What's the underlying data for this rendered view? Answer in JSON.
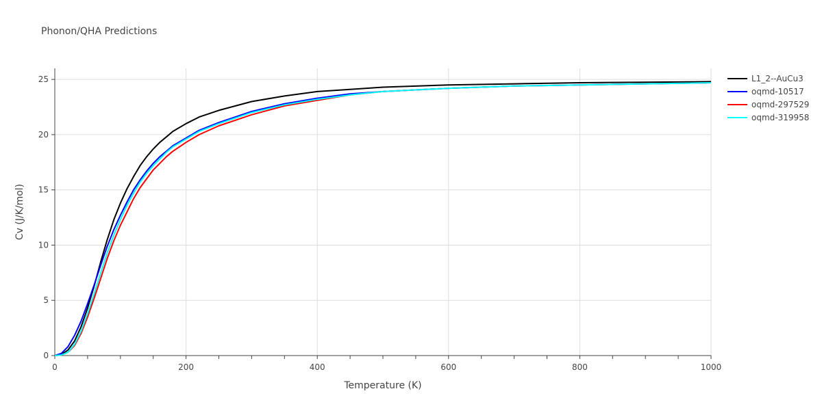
{
  "chart_data": {
    "type": "line",
    "title": "Phonon/QHA Predictions",
    "xlabel": "Temperature (K)",
    "ylabel": "Cv (J/K/mol)",
    "xlim": [
      0,
      1000
    ],
    "ylim": [
      0,
      26
    ],
    "x_ticks": [
      0,
      200,
      400,
      600,
      800,
      1000
    ],
    "y_ticks": [
      0,
      5,
      10,
      15,
      20,
      25
    ],
    "grid": true,
    "legend_position": "right",
    "series": [
      {
        "name": "L1_2--AuCu3",
        "color": "#000000",
        "points": [
          [
            0,
            0
          ],
          [
            10,
            0.1
          ],
          [
            20,
            0.5
          ],
          [
            30,
            1.3
          ],
          [
            40,
            2.6
          ],
          [
            50,
            4.3
          ],
          [
            60,
            6.3
          ],
          [
            70,
            8.5
          ],
          [
            80,
            10.5
          ],
          [
            90,
            12.3
          ],
          [
            100,
            13.8
          ],
          [
            110,
            15.1
          ],
          [
            120,
            16.2
          ],
          [
            130,
            17.2
          ],
          [
            140,
            18.0
          ],
          [
            150,
            18.7
          ],
          [
            160,
            19.3
          ],
          [
            170,
            19.8
          ],
          [
            180,
            20.3
          ],
          [
            200,
            21.0
          ],
          [
            220,
            21.6
          ],
          [
            250,
            22.2
          ],
          [
            300,
            23.0
          ],
          [
            350,
            23.5
          ],
          [
            400,
            23.9
          ],
          [
            450,
            24.1
          ],
          [
            500,
            24.3
          ],
          [
            600,
            24.5
          ],
          [
            700,
            24.6
          ],
          [
            800,
            24.7
          ],
          [
            900,
            24.75
          ],
          [
            1000,
            24.8
          ]
        ]
      },
      {
        "name": "oqmd-10517",
        "color": "#0000ff",
        "points": [
          [
            0,
            0
          ],
          [
            10,
            0.2
          ],
          [
            20,
            0.8
          ],
          [
            30,
            1.8
          ],
          [
            40,
            3.1
          ],
          [
            50,
            4.7
          ],
          [
            60,
            6.4
          ],
          [
            70,
            8.2
          ],
          [
            80,
            9.9
          ],
          [
            90,
            11.4
          ],
          [
            100,
            12.7
          ],
          [
            110,
            13.9
          ],
          [
            120,
            15.0
          ],
          [
            130,
            15.9
          ],
          [
            140,
            16.7
          ],
          [
            150,
            17.4
          ],
          [
            160,
            18.0
          ],
          [
            170,
            18.5
          ],
          [
            180,
            19.0
          ],
          [
            200,
            19.7
          ],
          [
            220,
            20.4
          ],
          [
            250,
            21.1
          ],
          [
            300,
            22.1
          ],
          [
            350,
            22.8
          ],
          [
            400,
            23.3
          ],
          [
            450,
            23.7
          ],
          [
            500,
            23.9
          ],
          [
            600,
            24.2
          ],
          [
            700,
            24.4
          ],
          [
            800,
            24.5
          ],
          [
            900,
            24.6
          ],
          [
            1000,
            24.7
          ]
        ]
      },
      {
        "name": "oqmd-297529",
        "color": "#ff0000",
        "points": [
          [
            0,
            0
          ],
          [
            10,
            0.05
          ],
          [
            20,
            0.3
          ],
          [
            30,
            0.9
          ],
          [
            40,
            2.0
          ],
          [
            50,
            3.5
          ],
          [
            60,
            5.2
          ],
          [
            70,
            7.0
          ],
          [
            80,
            8.8
          ],
          [
            90,
            10.4
          ],
          [
            100,
            11.8
          ],
          [
            110,
            13.0
          ],
          [
            120,
            14.2
          ],
          [
            130,
            15.2
          ],
          [
            140,
            16.0
          ],
          [
            150,
            16.8
          ],
          [
            160,
            17.4
          ],
          [
            170,
            18.0
          ],
          [
            180,
            18.5
          ],
          [
            200,
            19.3
          ],
          [
            220,
            20.0
          ],
          [
            250,
            20.8
          ],
          [
            300,
            21.8
          ],
          [
            350,
            22.6
          ],
          [
            400,
            23.1
          ],
          [
            450,
            23.6
          ],
          [
            500,
            23.9
          ],
          [
            600,
            24.2
          ],
          [
            700,
            24.4
          ],
          [
            800,
            24.5
          ],
          [
            900,
            24.6
          ],
          [
            1000,
            24.7
          ]
        ]
      },
      {
        "name": "oqmd-319958",
        "color": "#00ffff",
        "points": [
          [
            0,
            0
          ],
          [
            10,
            0.05
          ],
          [
            20,
            0.3
          ],
          [
            30,
            1.0
          ],
          [
            40,
            2.2
          ],
          [
            50,
            3.8
          ],
          [
            60,
            5.6
          ],
          [
            70,
            7.5
          ],
          [
            80,
            9.3
          ],
          [
            90,
            10.9
          ],
          [
            100,
            12.3
          ],
          [
            110,
            13.6
          ],
          [
            120,
            14.7
          ],
          [
            130,
            15.7
          ],
          [
            140,
            16.5
          ],
          [
            150,
            17.2
          ],
          [
            160,
            17.8
          ],
          [
            170,
            18.4
          ],
          [
            180,
            18.9
          ],
          [
            200,
            19.6
          ],
          [
            220,
            20.3
          ],
          [
            250,
            21.0
          ],
          [
            300,
            22.0
          ],
          [
            350,
            22.7
          ],
          [
            400,
            23.2
          ],
          [
            450,
            23.6
          ],
          [
            500,
            23.9
          ],
          [
            600,
            24.2
          ],
          [
            700,
            24.4
          ],
          [
            800,
            24.5
          ],
          [
            900,
            24.6
          ],
          [
            1000,
            24.7
          ]
        ]
      }
    ]
  }
}
